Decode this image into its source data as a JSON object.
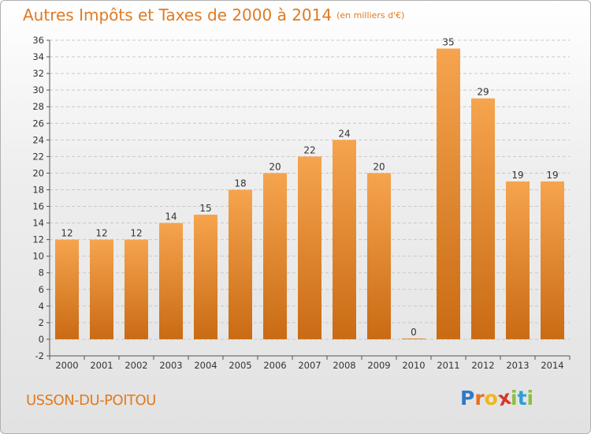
{
  "header": {
    "title": "Autres Impôts et Taxes de 2000 à 2014",
    "unit": "(en milliers d'€)"
  },
  "footer": {
    "city": "USSON-DU-POITOU",
    "logo": {
      "letters": [
        "P",
        "r",
        "o",
        "x",
        "i",
        "t",
        "i"
      ],
      "colors": [
        "#2f7bc4",
        "#e8711d",
        "#f2b51c",
        "#d13a2a",
        "#8cbf3f",
        "#2f9fd6",
        "#8cbf3f"
      ]
    }
  },
  "colors": {
    "bar_fill_light": "#f6a44e",
    "bar_fill_dark": "#c96b14",
    "accent": "#e07a22"
  },
  "chart_data": {
    "type": "bar",
    "categories": [
      "2000",
      "2001",
      "2002",
      "2003",
      "2004",
      "2005",
      "2006",
      "2007",
      "2008",
      "2009",
      "2010",
      "2011",
      "2012",
      "2013",
      "2014"
    ],
    "values": [
      12,
      12,
      12,
      14,
      15,
      18,
      20,
      22,
      24,
      20,
      0,
      35,
      29,
      19,
      19
    ],
    "ylim": [
      -2,
      36
    ],
    "yticks": [
      -2,
      0,
      2,
      4,
      6,
      8,
      10,
      12,
      14,
      16,
      18,
      20,
      22,
      24,
      26,
      28,
      30,
      32,
      34,
      36
    ],
    "grid": "horizontal dashed"
  }
}
